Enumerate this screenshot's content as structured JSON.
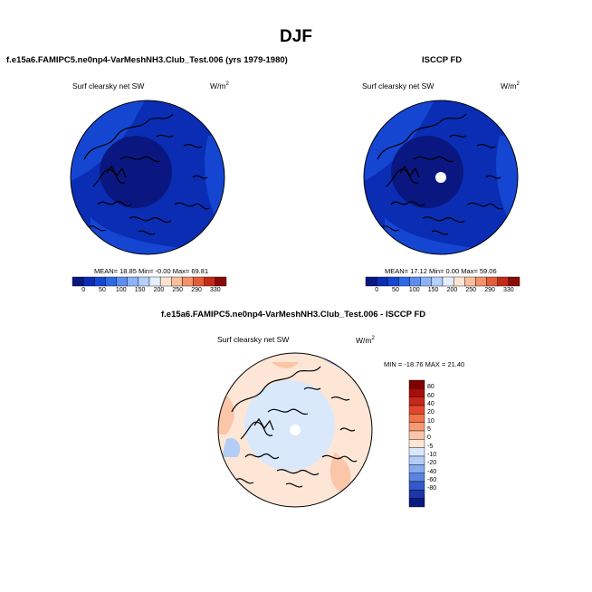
{
  "figure": {
    "title": "DJF",
    "panels": [
      {
        "title": "f.e15a6.FAMIPC5.ne0np4-VarMeshNH3.Club_Test.006 (yrs 1979-1980)",
        "variable": "Surf clearsky net SW",
        "units": "W/m",
        "units_exp": "2",
        "stats": "MEAN=  18.85  Min=  -0.00  Max=  69.81",
        "colorbar_ticks": [
          "0",
          "50",
          "100",
          "150",
          "200",
          "250",
          "290",
          "330"
        ]
      },
      {
        "title": "ISCCP FD",
        "variable": "Surf clearsky net SW",
        "units": "W/m",
        "units_exp": "2",
        "stats": "MEAN=  17.12  Min=   0.00  Max=  59.06",
        "colorbar_ticks": [
          "0",
          "50",
          "100",
          "150",
          "200",
          "250",
          "290",
          "330"
        ]
      },
      {
        "title": "f.e15a6.FAMIPC5.ne0np4-VarMeshNH3.Club_Test.006 - ISCCP FD",
        "variable": "Surf clearsky net SW",
        "units": "W/m",
        "units_exp": "2",
        "stats": "MIN = -18.76 MAX =  21.40",
        "colorbar_ticks": [
          "80",
          "60",
          "40",
          "20",
          "10",
          "5",
          "0",
          "-5",
          "-10",
          "-20",
          "-40",
          "-60",
          "-80"
        ]
      }
    ],
    "colors": {
      "abs_scale": [
        "#0a1780",
        "#0a2db4",
        "#1446d2",
        "#2f6ae6",
        "#5c8ef0",
        "#8ab3f8",
        "#b4d0fc",
        "#e6efff",
        "#fde3d2",
        "#fbbf9c",
        "#f4906a",
        "#e45c3a",
        "#c42a18",
        "#8a0c08"
      ],
      "diff_scale": [
        "#800000",
        "#a80d06",
        "#c8281a",
        "#e2472c",
        "#f0714a",
        "#f79a72",
        "#fbc5a8",
        "#fde6d6",
        "#d9e8fb",
        "#b3cdf7",
        "#85aaf0",
        "#5a83e2",
        "#3359cc",
        "#1c35a8",
        "#0a1a80"
      ]
    }
  }
}
